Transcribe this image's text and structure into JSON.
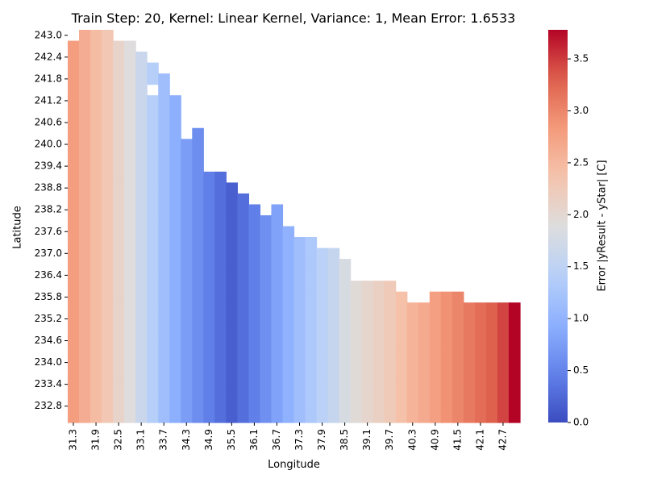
{
  "chart_data": {
    "type": "heatmap",
    "title": "Train Step: 20, Kernel: Linear Kernel, Variance: 1, Mean Error: 1.6533",
    "xlabel": "Longitude",
    "ylabel": "Latitude",
    "colorbar_label": "Error |yResult - yStar| [C]",
    "colormap": "coolwarm",
    "vmin": 0.0,
    "vmax": 3.78,
    "x_tick_labels": [
      "31.3",
      "31.9",
      "32.5",
      "33.1",
      "33.7",
      "34.3",
      "34.9",
      "35.5",
      "36.1",
      "36.7",
      "37.3",
      "37.9",
      "38.5",
      "39.1",
      "39.7",
      "40.3",
      "40.9",
      "41.5",
      "42.1",
      "42.7"
    ],
    "y_tick_labels": [
      "243.0",
      "242.4",
      "241.8",
      "241.2",
      "240.6",
      "240.0",
      "239.4",
      "238.8",
      "238.2",
      "237.6",
      "237.0",
      "236.4",
      "235.8",
      "235.2",
      "234.6",
      "234.0",
      "233.4",
      "232.8"
    ],
    "colorbar_ticks": [
      "0.0",
      "0.5",
      "1.0",
      "1.5",
      "2.0",
      "2.5",
      "3.0",
      "3.5"
    ],
    "columns": [
      {
        "lon": 31.3,
        "value": 2.8,
        "top_lat": 242.7
      },
      {
        "lon": 31.6,
        "value": 2.62,
        "top_lat": 243.0
      },
      {
        "lon": 31.9,
        "value": 2.45,
        "top_lat": 243.0
      },
      {
        "lon": 32.2,
        "value": 2.3,
        "top_lat": 243.0
      },
      {
        "lon": 32.5,
        "value": 2.08,
        "top_lat": 242.7
      },
      {
        "lon": 32.8,
        "value": 1.9,
        "top_lat": 242.7
      },
      {
        "lon": 33.1,
        "value": 1.65,
        "top_lat": 242.4
      },
      {
        "lon": 33.4,
        "value": 1.4,
        "top_lat": 242.1,
        "gap_lats": [
          241.5
        ]
      },
      {
        "lon": 33.7,
        "value": 1.15,
        "top_lat": 241.8
      },
      {
        "lon": 34.0,
        "value": 0.95,
        "top_lat": 241.2
      },
      {
        "lon": 34.3,
        "value": 0.75,
        "top_lat": 240.3,
        "gap_lats": [
          240.3
        ]
      },
      {
        "lon": 34.6,
        "value": 0.6,
        "top_lat": 240.3
      },
      {
        "lon": 34.9,
        "value": 0.45,
        "top_lat": 239.1
      },
      {
        "lon": 35.2,
        "value": 0.3,
        "top_lat": 239.1
      },
      {
        "lon": 35.5,
        "value": 0.17,
        "top_lat": 238.8
      },
      {
        "lon": 35.8,
        "value": 0.3,
        "top_lat": 238.5
      },
      {
        "lon": 36.1,
        "value": 0.45,
        "top_lat": 238.2
      },
      {
        "lon": 36.4,
        "value": 0.62,
        "top_lat": 237.9
      },
      {
        "lon": 36.7,
        "value": 0.8,
        "top_lat": 238.2
      },
      {
        "lon": 37.0,
        "value": 0.98,
        "top_lat": 237.6
      },
      {
        "lon": 37.3,
        "value": 1.15,
        "top_lat": 237.3
      },
      {
        "lon": 37.6,
        "value": 1.3,
        "top_lat": 237.3
      },
      {
        "lon": 37.9,
        "value": 1.45,
        "top_lat": 237.0
      },
      {
        "lon": 38.2,
        "value": 1.6,
        "top_lat": 237.0
      },
      {
        "lon": 38.5,
        "value": 1.8,
        "top_lat": 236.7
      },
      {
        "lon": 38.8,
        "value": 1.95,
        "top_lat": 236.1
      },
      {
        "lon": 39.1,
        "value": 2.05,
        "top_lat": 236.1
      },
      {
        "lon": 39.4,
        "value": 2.15,
        "top_lat": 236.1
      },
      {
        "lon": 39.7,
        "value": 2.25,
        "top_lat": 236.1
      },
      {
        "lon": 40.0,
        "value": 2.4,
        "top_lat": 235.8
      },
      {
        "lon": 40.3,
        "value": 2.55,
        "top_lat": 235.5
      },
      {
        "lon": 40.6,
        "value": 2.65,
        "top_lat": 235.5
      },
      {
        "lon": 40.9,
        "value": 2.78,
        "top_lat": 235.8
      },
      {
        "lon": 41.2,
        "value": 2.9,
        "top_lat": 235.8
      },
      {
        "lon": 41.5,
        "value": 3.0,
        "top_lat": 235.8
      },
      {
        "lon": 41.8,
        "value": 3.1,
        "top_lat": 235.5
      },
      {
        "lon": 42.1,
        "value": 3.2,
        "top_lat": 235.5
      },
      {
        "lon": 42.4,
        "value": 3.3,
        "top_lat": 235.5
      },
      {
        "lon": 42.7,
        "value": 3.45,
        "top_lat": 235.5
      },
      {
        "lon": 43.0,
        "value": 3.78,
        "top_lat": 235.5
      }
    ]
  }
}
